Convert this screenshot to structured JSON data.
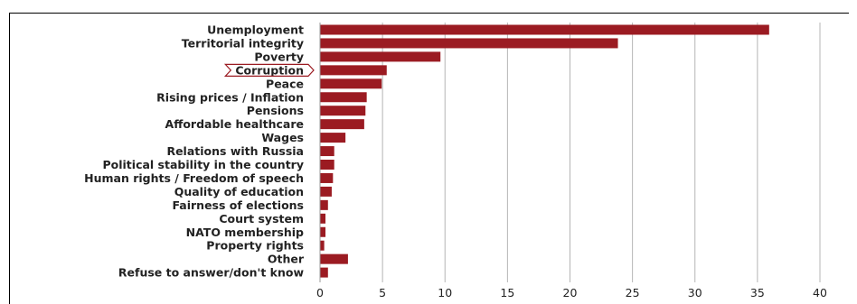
{
  "chart_data": {
    "type": "bar",
    "orientation": "horizontal",
    "categories": [
      "Unemployment",
      "Territorial integrity",
      "Poverty",
      "Corruption",
      "Peace",
      "Rising prices / Inflation",
      "Pensions",
      "Affordable healthcare ",
      "Wages",
      "Relations with Russia",
      "Political stability in the country",
      "Human rights / Freedom of speech",
      "Quality of education",
      "Fairness of elections",
      "Court system",
      "NATO membership",
      "Property rights",
      "Other",
      "Refuse to answer/don't know"
    ],
    "values": [
      35.9,
      23.8,
      9.6,
      5.3,
      4.9,
      3.7,
      3.6,
      3.5,
      2.0,
      1.1,
      1.1,
      1.0,
      0.9,
      0.6,
      0.4,
      0.4,
      0.3,
      2.2,
      0.6
    ],
    "highlighted_category": "Corruption",
    "xlim": [
      0,
      40
    ],
    "xticks": [
      "0",
      "5",
      "10",
      "15",
      "20",
      "25",
      "30",
      "35",
      "40"
    ],
    "title": "",
    "xlabel": "",
    "ylabel": "",
    "grid": "vertical",
    "bar_color": "#9b1b22",
    "highlight_color": "#9b1b22"
  }
}
